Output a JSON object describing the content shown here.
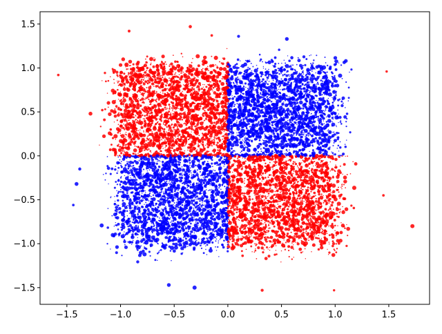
{
  "chart_data": {
    "type": "scatter",
    "title": "",
    "xlabel": "",
    "ylabel": "",
    "xlim": [
      -1.75,
      1.88
    ],
    "ylim": [
      -1.69,
      1.64
    ],
    "xticks": [
      -1.5,
      -1.0,
      -0.5,
      0.0,
      0.5,
      1.0,
      1.5
    ],
    "xtick_labels": [
      "−1.5",
      "−1.0",
      "−0.5",
      "0.0",
      "0.5",
      "1.0",
      "1.5"
    ],
    "yticks": [
      -1.5,
      -1.0,
      -0.5,
      0.0,
      0.5,
      1.0,
      1.5
    ],
    "ytick_labels": [
      "−1.5",
      "−1.0",
      "−0.5",
      "0.0",
      "0.5",
      "1.0",
      "1.5"
    ],
    "grid": false,
    "legend": "none",
    "series": [
      {
        "color": "#ff0000",
        "regions": [
          {
            "quadrant": "top-left",
            "x_range": [
              -1.0,
              0.0
            ],
            "y_range": [
              0.0,
              1.0
            ],
            "points_approx": 2500
          },
          {
            "quadrant": "bottom-right",
            "x_range": [
              0.0,
              1.0
            ],
            "y_range": [
              -1.0,
              0.0
            ],
            "points_approx": 2500
          }
        ],
        "outliers": [
          {
            "x": 1.72,
            "y": -0.8
          },
          {
            "x": -1.58,
            "y": 0.92
          },
          {
            "x": -0.35,
            "y": 1.47
          },
          {
            "x": -0.92,
            "y": 1.42
          },
          {
            "x": 0.99,
            "y": -1.53
          },
          {
            "x": 0.32,
            "y": -1.53
          },
          {
            "x": 1.48,
            "y": 0.96
          },
          {
            "x": -1.28,
            "y": 0.48
          },
          {
            "x": 1.45,
            "y": -0.45
          },
          {
            "x": -0.15,
            "y": 1.37
          }
        ]
      },
      {
        "color": "#0000ff",
        "regions": [
          {
            "quadrant": "top-right",
            "x_range": [
              0.0,
              1.0
            ],
            "y_range": [
              0.0,
              1.0
            ],
            "points_approx": 2500
          },
          {
            "quadrant": "bottom-left",
            "x_range": [
              -1.0,
              0.0
            ],
            "y_range": [
              -1.0,
              0.0
            ],
            "points_approx": 2500
          }
        ],
        "outliers": [
          {
            "x": -1.44,
            "y": -0.56
          },
          {
            "x": -1.41,
            "y": -0.32
          },
          {
            "x": -0.31,
            "y": -1.5
          },
          {
            "x": -0.55,
            "y": -1.47
          },
          {
            "x": -1.38,
            "y": -0.15
          },
          {
            "x": 0.1,
            "y": 1.36
          },
          {
            "x": 1.1,
            "y": 1.08
          },
          {
            "x": 0.55,
            "y": 1.33
          }
        ]
      }
    ],
    "marker_alpha": 0.85
  }
}
